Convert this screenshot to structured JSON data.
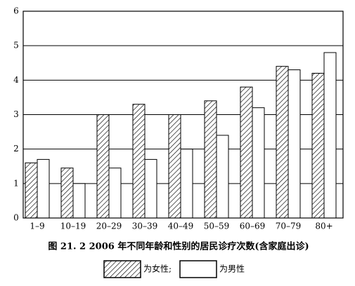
{
  "chart_data": {
    "type": "bar",
    "caption": "图 21. 2   2006 年不同年龄和性别的居民诊疗次数(含家庭出诊)",
    "categories": [
      "1–9",
      "10–19",
      "20–29",
      "30–39",
      "40–49",
      "50–59",
      "60–69",
      "70–79",
      "80+"
    ],
    "series": [
      {
        "name": "为女性;",
        "color": "#000000",
        "pattern": "hatch",
        "values": [
          1.6,
          1.45,
          3.0,
          3.3,
          3.0,
          3.4,
          3.8,
          4.4,
          4.2
        ]
      },
      {
        "name": "为男性",
        "color": "#ffffff",
        "pattern": "solid",
        "values": [
          1.7,
          1.0,
          1.45,
          1.7,
          2.0,
          2.4,
          3.2,
          4.3,
          4.8
        ]
      }
    ],
    "ylim": [
      0,
      6
    ],
    "yticks": [
      0,
      1,
      2,
      3,
      4,
      5,
      6
    ],
    "grid": true
  }
}
